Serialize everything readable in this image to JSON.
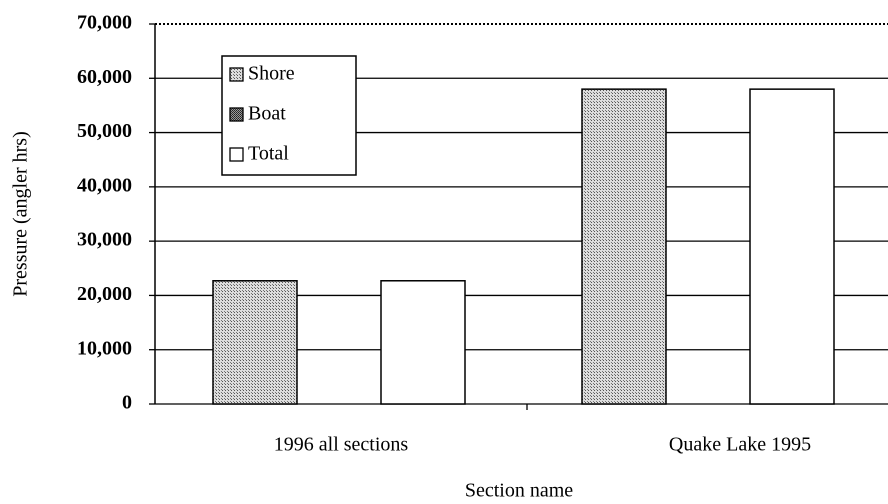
{
  "chart_data": {
    "type": "bar",
    "xlabel": "Section name",
    "ylabel": "Pressure (angler hrs)",
    "categories": [
      "1996 all sections",
      "Quake Lake 1995"
    ],
    "series": [
      {
        "name": "Shore",
        "color": "#bdbdbd",
        "values": [
          22700,
          58000
        ]
      },
      {
        "name": "Boat",
        "color": "#6e6e6e",
        "values": [
          0,
          0
        ]
      },
      {
        "name": "Total",
        "color": "#ffffff",
        "values": [
          22700,
          58000
        ]
      }
    ],
    "ylim": [
      0,
      70000
    ],
    "yticks": [
      0,
      {
        "value": 10000,
        "label": "10,000"
      },
      {
        "value": 20000,
        "label": "20,000"
      },
      {
        "value": 30000,
        "label": "30,000"
      },
      {
        "value": 40000,
        "label": "40,000"
      },
      {
        "value": 50000,
        "label": "50,000"
      },
      {
        "value": 60000,
        "label": "60,000"
      },
      {
        "value": 70000,
        "label": "70,000"
      }
    ],
    "grid": true,
    "legend": "upper left"
  }
}
